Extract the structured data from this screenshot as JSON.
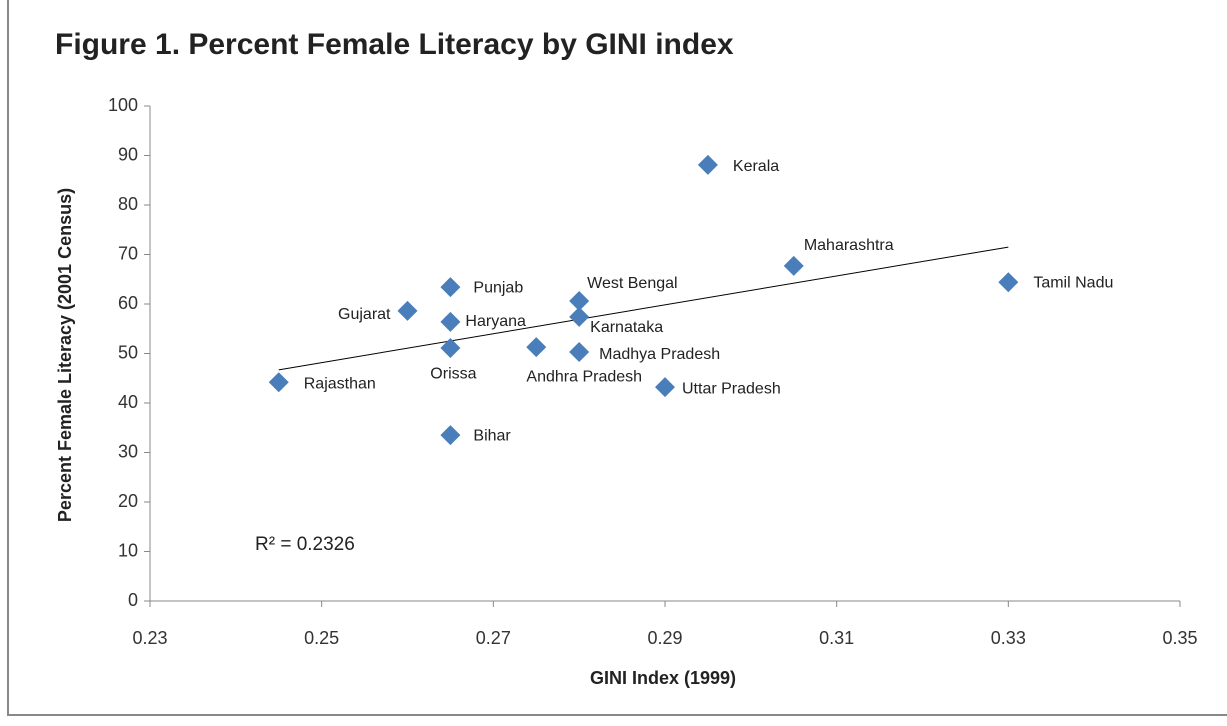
{
  "chart_data": {
    "type": "scatter",
    "title": "Figure 1.  Percent Female Literacy by GINI index",
    "x_label": "GINI Index (1999)",
    "y_label": "Percent Female Literacy (2001 Census)",
    "annotation": "R² = 0.2326",
    "color": "#4a7ebb",
    "labels": [
      "Rajasthan",
      "Gujarat",
      "Punjab",
      "Haryana",
      "Orissa",
      "Bihar",
      "Andhra Pradesh",
      "West Bengal",
      "Karnataka",
      "Madhya Pradesh",
      "Uttar Pradesh",
      "Kerala",
      "Maharashtra",
      "Tamil Nadu"
    ],
    "x": [
      0.245,
      0.26,
      0.265,
      0.265,
      0.265,
      0.265,
      0.275,
      0.28,
      0.28,
      0.28,
      0.29,
      0.295,
      0.305,
      0.33
    ],
    "values": [
      44.2,
      58.6,
      63.4,
      56.4,
      51.1,
      33.5,
      51.3,
      60.6,
      57.4,
      50.3,
      43.2,
      88.1,
      67.7,
      64.4
    ],
    "trendline": {
      "x": [
        0.245,
        0.33
      ],
      "values": [
        46.7,
        71.5
      ]
    },
    "xlim": [
      0.23,
      0.35
    ],
    "xticks": [
      0.23,
      0.25,
      0.27,
      0.29,
      0.31,
      0.33,
      0.35
    ],
    "ylim": [
      0,
      100
    ],
    "yticks": [
      0,
      10,
      20,
      30,
      40,
      50,
      60,
      70,
      80,
      90,
      100
    ]
  }
}
